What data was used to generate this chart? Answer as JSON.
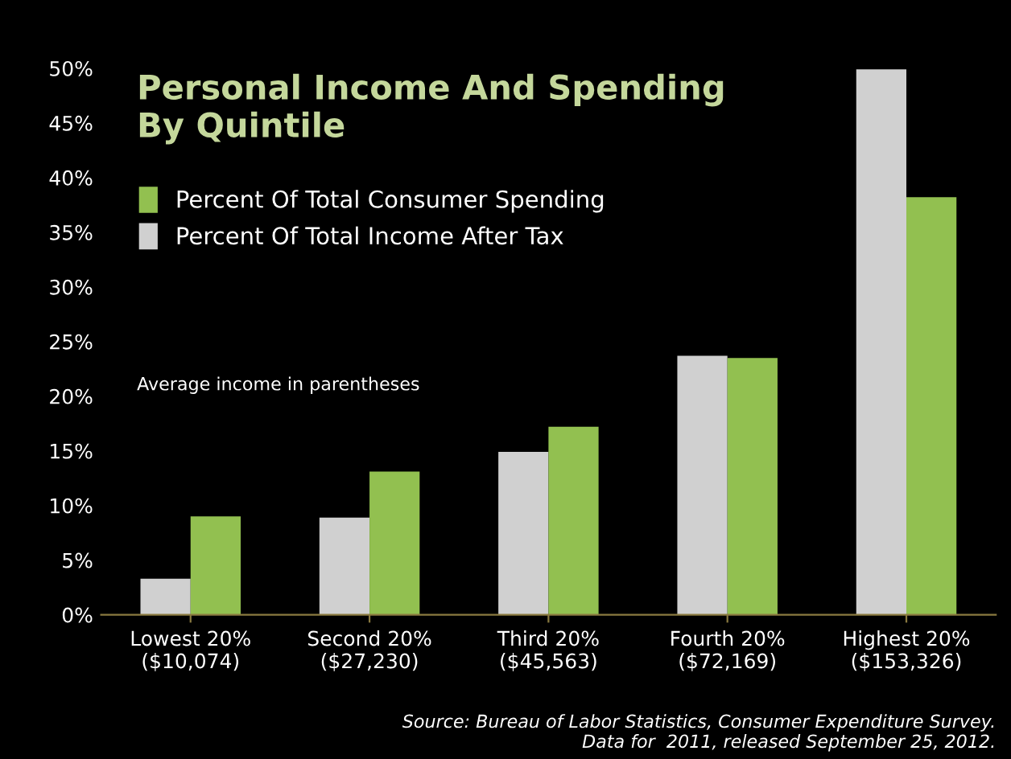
{
  "chart_data": {
    "type": "bar",
    "title": "Personal Income And Spending\nBy Quintile",
    "categories": [
      "Lowest 20%\n($10,074)",
      "Second 20%\n($27,230)",
      "Third 20%\n($45,563)",
      "Fourth 20%\n($72,169)",
      "Highest 20%\n($153,326)"
    ],
    "series": [
      {
        "name": "Percent Of Total Income After Tax",
        "color": "#d0d0d0",
        "values": [
          3.3,
          8.9,
          14.9,
          23.7,
          49.9
        ]
      },
      {
        "name": "Percent Of Total Consumer Spending",
        "color": "#92c050",
        "values": [
          9.0,
          13.1,
          17.2,
          23.5,
          38.2
        ]
      }
    ],
    "ylim": [
      0,
      50
    ],
    "yticks": [
      {
        "value": 0,
        "label": "0%"
      },
      {
        "value": 5,
        "label": "5%"
      },
      {
        "value": 10,
        "label": "10%"
      },
      {
        "value": 15,
        "label": "15%"
      },
      {
        "value": 20,
        "label": "20%"
      },
      {
        "value": 25,
        "label": "25%"
      },
      {
        "value": 30,
        "label": "30%"
      },
      {
        "value": 35,
        "label": "35%"
      },
      {
        "value": 40,
        "label": "40%"
      },
      {
        "value": 45,
        "label": "45%"
      },
      {
        "value": 50,
        "label": "50%"
      }
    ],
    "grid": false,
    "legend": "top left",
    "annotations": [
      "Average income in parentheses",
      "Source: Bureau of Labor Statistics, Consumer Expenditure Survey.\nData for  2011, released September 25, 2012."
    ]
  }
}
